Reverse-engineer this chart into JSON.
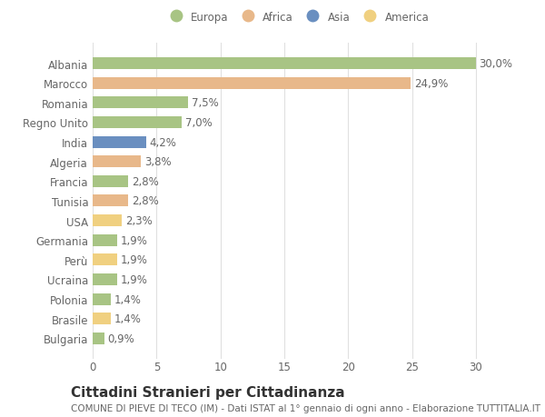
{
  "countries": [
    "Albania",
    "Marocco",
    "Romania",
    "Regno Unito",
    "India",
    "Algeria",
    "Francia",
    "Tunisia",
    "USA",
    "Germania",
    "Perù",
    "Ucraina",
    "Polonia",
    "Brasile",
    "Bulgaria"
  ],
  "values": [
    30.0,
    24.9,
    7.5,
    7.0,
    4.2,
    3.8,
    2.8,
    2.8,
    2.3,
    1.9,
    1.9,
    1.9,
    1.4,
    1.4,
    0.9
  ],
  "labels": [
    "30,0%",
    "24,9%",
    "7,5%",
    "7,0%",
    "4,2%",
    "3,8%",
    "2,8%",
    "2,8%",
    "2,3%",
    "1,9%",
    "1,9%",
    "1,9%",
    "1,4%",
    "1,4%",
    "0,9%"
  ],
  "colors": [
    "#a8c484",
    "#e8b88a",
    "#a8c484",
    "#a8c484",
    "#6a8fc0",
    "#e8b88a",
    "#a8c484",
    "#e8b88a",
    "#f0d080",
    "#a8c484",
    "#f0d080",
    "#a8c484",
    "#a8c484",
    "#f0d080",
    "#a8c484"
  ],
  "continent_labels": [
    "Europa",
    "Africa",
    "Asia",
    "America"
  ],
  "continent_colors": [
    "#a8c484",
    "#e8b88a",
    "#6a8fc0",
    "#f0d080"
  ],
  "xlim": [
    0,
    32
  ],
  "xticks": [
    0,
    5,
    10,
    15,
    20,
    25,
    30
  ],
  "title": "Cittadini Stranieri per Cittadinanza",
  "subtitle": "COMUNE DI PIEVE DI TECO (IM) - Dati ISTAT al 1° gennaio di ogni anno - Elaborazione TUTTITALIA.IT",
  "bg_color": "#ffffff",
  "grid_color": "#e0e0e0",
  "bar_height": 0.6,
  "label_fontsize": 8.5,
  "tick_fontsize": 8.5,
  "title_fontsize": 11,
  "subtitle_fontsize": 7.5
}
